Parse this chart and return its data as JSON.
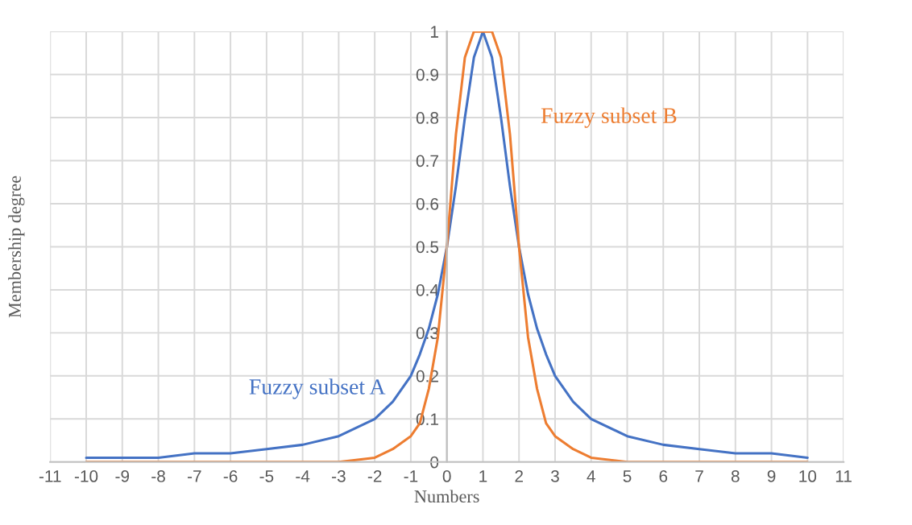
{
  "chart_data": {
    "type": "line",
    "xlabel": "Numbers",
    "ylabel": "Membership degree",
    "x": [
      -10,
      -9,
      -8,
      -7,
      -6,
      -5,
      -4,
      -3,
      -2,
      -1.5,
      -1,
      -0.75,
      -0.5,
      -0.25,
      0,
      0.25,
      0.5,
      0.75,
      1,
      1.25,
      1.5,
      1.75,
      2,
      2.25,
      2.5,
      2.75,
      3,
      3.5,
      4,
      5,
      6,
      7,
      8,
      9,
      10
    ],
    "series": [
      {
        "name": "Fuzzy subset A",
        "color": "#4472c4",
        "values": [
          0.01,
          0.01,
          0.01,
          0.02,
          0.02,
          0.03,
          0.04,
          0.06,
          0.1,
          0.14,
          0.2,
          0.25,
          0.31,
          0.39,
          0.5,
          0.64,
          0.8,
          0.94,
          1,
          0.94,
          0.8,
          0.64,
          0.5,
          0.39,
          0.31,
          0.25,
          0.2,
          0.14,
          0.1,
          0.06,
          0.04,
          0.03,
          0.02,
          0.02,
          0.01
        ]
      },
      {
        "name": "Fuzzy subset B",
        "color": "#ed7d31",
        "values": [
          0,
          0,
          0,
          0,
          0,
          0,
          0,
          0,
          0.01,
          0.03,
          0.06,
          0.09,
          0.17,
          0.29,
          0.5,
          0.76,
          0.94,
          1,
          1,
          1,
          0.94,
          0.76,
          0.5,
          0.29,
          0.17,
          0.09,
          0.06,
          0.03,
          0.01,
          0,
          0,
          0,
          0,
          0,
          0
        ]
      }
    ],
    "xlim": [
      -11,
      11
    ],
    "ylim": [
      0,
      1
    ],
    "xticks": [
      -11,
      -10,
      -9,
      -8,
      -7,
      -6,
      -5,
      -4,
      -3,
      -2,
      -1,
      0,
      1,
      2,
      3,
      4,
      5,
      6,
      7,
      8,
      9,
      10,
      11
    ],
    "yticks": [
      0,
      0.1,
      0.2,
      0.3,
      0.4,
      0.5,
      0.6,
      0.7,
      0.8,
      0.9,
      1
    ],
    "grid": true,
    "legend": false
  }
}
